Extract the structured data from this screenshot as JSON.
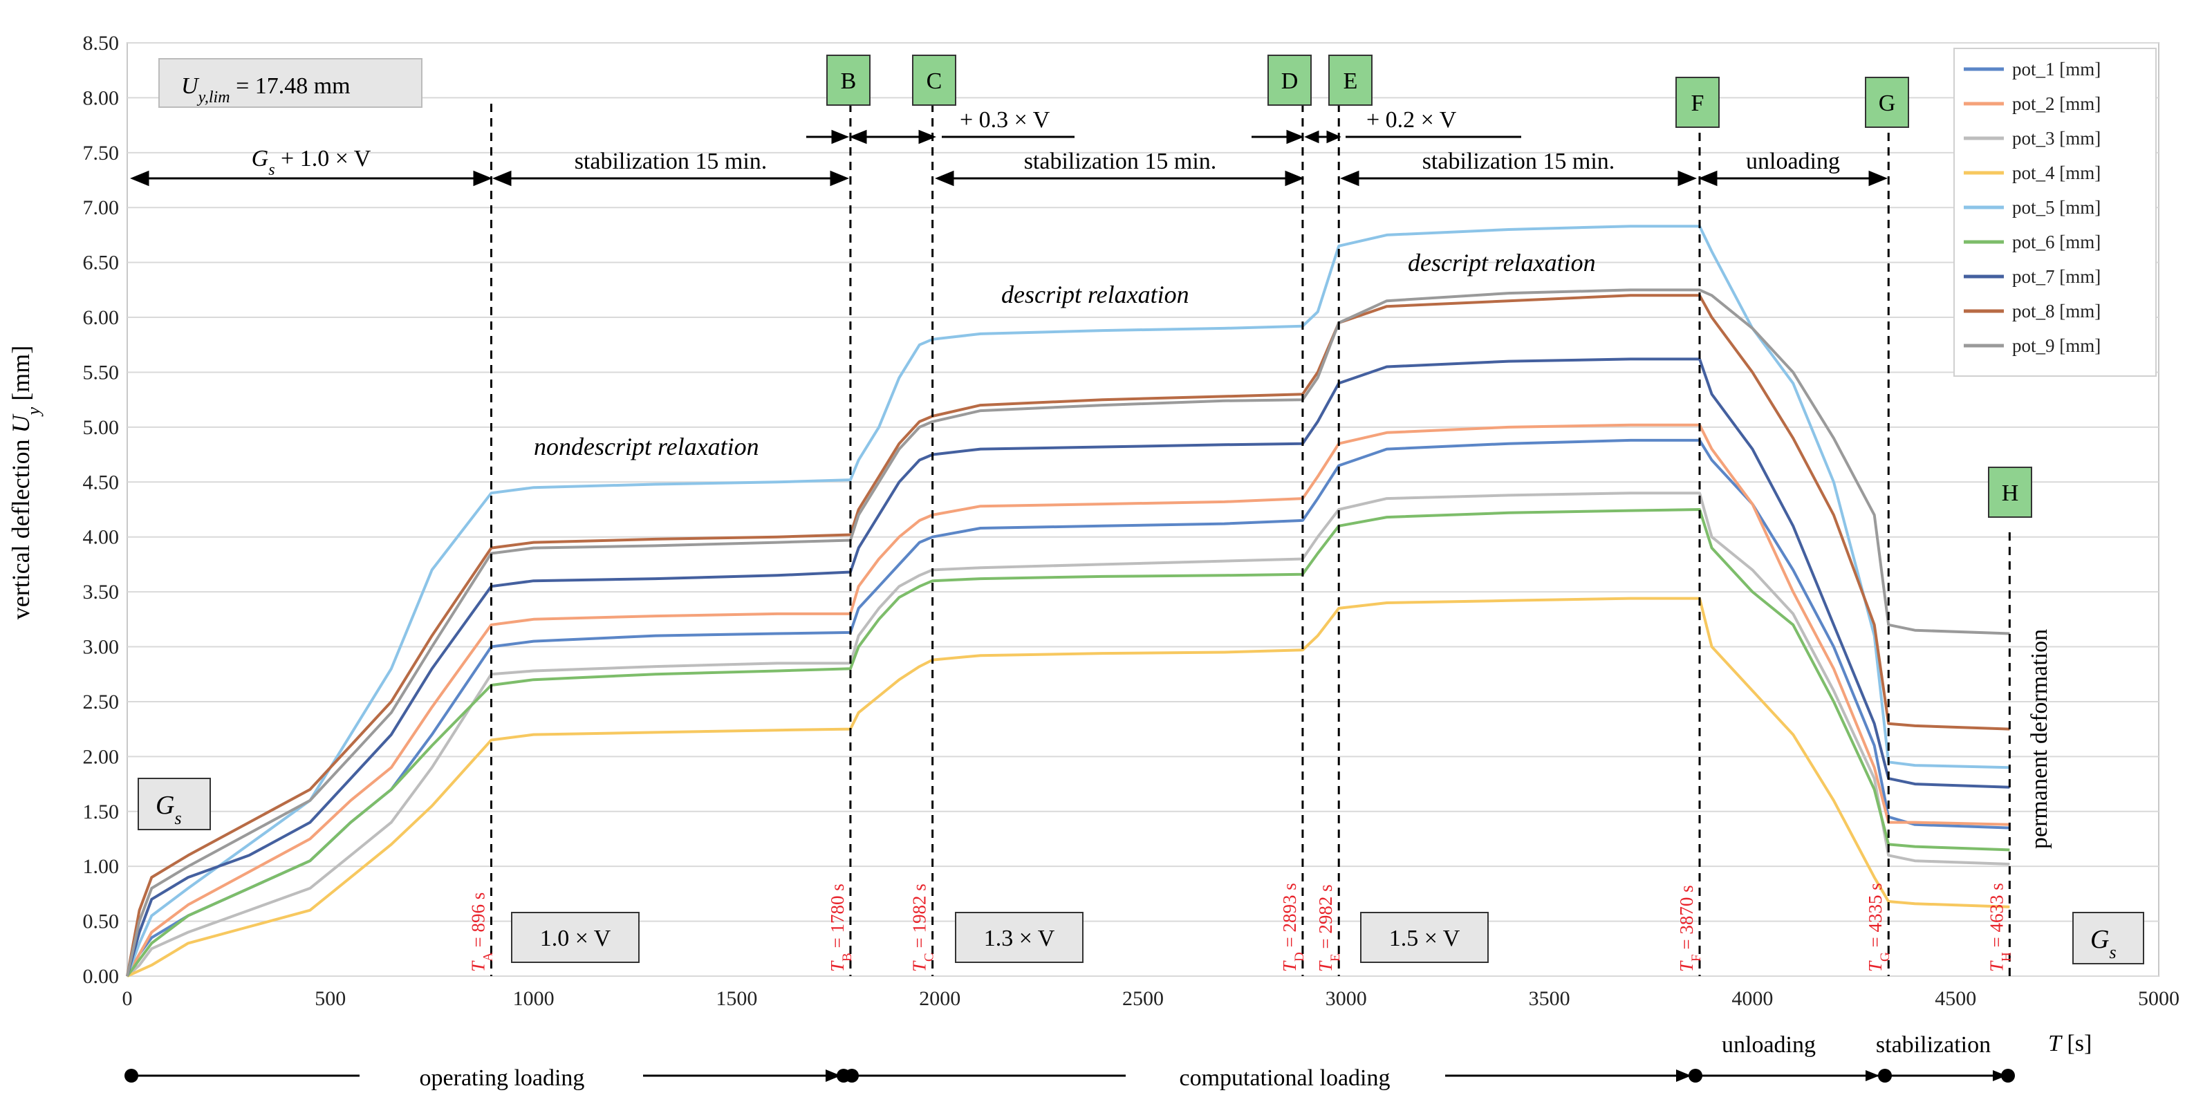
{
  "chart_data": {
    "type": "line",
    "xlabel_prefix": "T",
    "xlabel_unit": "[s]",
    "ylabel_prefix": "vertical deflection",
    "ylabel_symbol": "U",
    "ylabel_sub": "y",
    "ylabel_unit": "[mm]",
    "xlim": [
      0,
      5000
    ],
    "ylim": [
      0,
      8.5
    ],
    "xticks": [
      0,
      500,
      1000,
      1500,
      2000,
      2500,
      3000,
      3500,
      4000,
      4500,
      5000
    ],
    "yticks": [
      "0.00",
      "0.50",
      "1.00",
      "1.50",
      "2.00",
      "2.50",
      "3.00",
      "3.50",
      "4.00",
      "4.50",
      "5.00",
      "5.50",
      "6.00",
      "6.50",
      "7.00",
      "7.50",
      "8.00",
      "8.50"
    ],
    "legend_position": "top-right",
    "x": [
      0,
      30,
      60,
      150,
      300,
      450,
      550,
      650,
      750,
      896,
      1000,
      1300,
      1600,
      1780,
      1800,
      1850,
      1900,
      1950,
      1982,
      2100,
      2400,
      2700,
      2893,
      2930,
      2982,
      3100,
      3400,
      3700,
      3870,
      3900,
      4000,
      4100,
      4200,
      4300,
      4335,
      4400,
      4633
    ],
    "series": [
      {
        "name": "pot_1 [mm]",
        "color": "#5b86c7",
        "values": [
          0,
          0.2,
          0.35,
          0.55,
          0.8,
          1.05,
          1.4,
          1.7,
          2.2,
          3.0,
          3.05,
          3.1,
          3.12,
          3.13,
          3.35,
          3.55,
          3.75,
          3.95,
          4.0,
          4.08,
          4.1,
          4.12,
          4.15,
          4.35,
          4.65,
          4.8,
          4.85,
          4.88,
          4.88,
          4.7,
          4.3,
          3.7,
          3.0,
          2.1,
          1.45,
          1.38,
          1.35
        ]
      },
      {
        "name": "pot_2 [mm]",
        "color": "#f5a27a",
        "values": [
          0,
          0.2,
          0.4,
          0.65,
          0.95,
          1.25,
          1.6,
          1.9,
          2.45,
          3.2,
          3.25,
          3.28,
          3.3,
          3.3,
          3.55,
          3.8,
          4.0,
          4.15,
          4.2,
          4.28,
          4.3,
          4.32,
          4.35,
          4.55,
          4.85,
          4.95,
          5.0,
          5.02,
          5.02,
          4.8,
          4.3,
          3.5,
          2.8,
          1.9,
          1.4,
          1.4,
          1.38
        ]
      },
      {
        "name": "pot_3 [mm]",
        "color": "#bdbdbd",
        "values": [
          0,
          0.1,
          0.25,
          0.4,
          0.6,
          0.8,
          1.1,
          1.4,
          1.9,
          2.75,
          2.78,
          2.82,
          2.85,
          2.85,
          3.1,
          3.35,
          3.55,
          3.65,
          3.7,
          3.72,
          3.75,
          3.78,
          3.8,
          4.0,
          4.25,
          4.35,
          4.38,
          4.4,
          4.4,
          4.0,
          3.7,
          3.3,
          2.6,
          1.8,
          1.1,
          1.05,
          1.02
        ]
      },
      {
        "name": "pot_4 [mm]",
        "color": "#f7c85f",
        "values": [
          0,
          0.05,
          0.1,
          0.3,
          0.45,
          0.6,
          0.9,
          1.2,
          1.55,
          2.15,
          2.2,
          2.22,
          2.24,
          2.25,
          2.4,
          2.55,
          2.7,
          2.82,
          2.88,
          2.92,
          2.94,
          2.95,
          2.97,
          3.1,
          3.35,
          3.4,
          3.42,
          3.44,
          3.44,
          3.0,
          2.6,
          2.2,
          1.6,
          0.9,
          0.68,
          0.66,
          0.63
        ]
      },
      {
        "name": "pot_5 [mm]",
        "color": "#8cc4e8",
        "values": [
          0,
          0.3,
          0.55,
          0.8,
          1.2,
          1.6,
          2.2,
          2.8,
          3.7,
          4.4,
          4.45,
          4.48,
          4.5,
          4.52,
          4.7,
          5.0,
          5.45,
          5.75,
          5.8,
          5.85,
          5.88,
          5.9,
          5.92,
          6.05,
          6.65,
          6.75,
          6.8,
          6.83,
          6.83,
          6.6,
          5.9,
          5.4,
          4.5,
          3.1,
          1.95,
          1.92,
          1.9
        ]
      },
      {
        "name": "pot_6 [mm]",
        "color": "#7dbd6a",
        "values": [
          0,
          0.15,
          0.3,
          0.55,
          0.8,
          1.05,
          1.4,
          1.7,
          2.1,
          2.65,
          2.7,
          2.75,
          2.78,
          2.8,
          3.0,
          3.25,
          3.45,
          3.55,
          3.6,
          3.62,
          3.64,
          3.65,
          3.66,
          3.85,
          4.1,
          4.18,
          4.22,
          4.24,
          4.25,
          3.9,
          3.5,
          3.2,
          2.5,
          1.7,
          1.2,
          1.18,
          1.15
        ]
      },
      {
        "name": "pot_7 [mm]",
        "color": "#44609f",
        "values": [
          0,
          0.4,
          0.7,
          0.9,
          1.1,
          1.4,
          1.8,
          2.2,
          2.8,
          3.55,
          3.6,
          3.62,
          3.65,
          3.68,
          3.9,
          4.2,
          4.5,
          4.7,
          4.75,
          4.8,
          4.82,
          4.84,
          4.85,
          5.05,
          5.4,
          5.55,
          5.6,
          5.62,
          5.62,
          5.3,
          4.8,
          4.1,
          3.2,
          2.3,
          1.8,
          1.75,
          1.72
        ]
      },
      {
        "name": "pot_8 [mm]",
        "color": "#b86b45",
        "values": [
          0,
          0.6,
          0.9,
          1.1,
          1.4,
          1.7,
          2.1,
          2.5,
          3.1,
          3.9,
          3.95,
          3.98,
          4.0,
          4.02,
          4.25,
          4.55,
          4.85,
          5.05,
          5.1,
          5.2,
          5.25,
          5.28,
          5.3,
          5.5,
          5.95,
          6.1,
          6.15,
          6.2,
          6.2,
          6.0,
          5.5,
          4.9,
          4.2,
          3.2,
          2.3,
          2.28,
          2.25
        ]
      },
      {
        "name": "pot_9 [mm]",
        "color": "#9a9a9a",
        "values": [
          0,
          0.5,
          0.8,
          1.0,
          1.3,
          1.6,
          2.0,
          2.4,
          3.0,
          3.85,
          3.9,
          3.92,
          3.95,
          3.97,
          4.2,
          4.5,
          4.8,
          5.0,
          5.05,
          5.15,
          5.2,
          5.24,
          5.25,
          5.45,
          5.95,
          6.15,
          6.22,
          6.25,
          6.25,
          6.2,
          5.9,
          5.5,
          4.9,
          4.2,
          3.2,
          3.15,
          3.12
        ]
      }
    ],
    "vlines": [
      {
        "x": 896,
        "label_sym": "T",
        "label_sub": "A",
        "label_val": "= 896 s"
      },
      {
        "x": 1780,
        "label_sym": "T",
        "label_sub": "B",
        "label_val": "= 1780 s"
      },
      {
        "x": 1982,
        "label_sym": "T",
        "label_sub": "C",
        "label_val": "= 1982 s"
      },
      {
        "x": 2893,
        "label_sym": "T",
        "label_sub": "D",
        "label_val": "= 2893 s"
      },
      {
        "x": 2982,
        "label_sym": "T",
        "label_sub": "E",
        "label_val": "= 2982 s"
      },
      {
        "x": 3870,
        "label_sym": "T",
        "label_sub": "F",
        "label_val": "= 3870 s"
      },
      {
        "x": 4335,
        "label_sym": "T",
        "label_sub": "G",
        "label_val": "= 4335 s"
      },
      {
        "x": 4633,
        "label_sym": "T",
        "label_sub": "H",
        "label_val": "= 4633 s"
      }
    ],
    "markers": [
      "B",
      "C",
      "D",
      "E",
      "F",
      "G",
      "H"
    ],
    "boxes": {
      "ulim_sym": "U",
      "ulim_sub": "y,lim",
      "ulim_val": "= 17.48 mm",
      "gs_sym": "G",
      "gs_sub": "s",
      "load_1": "1.0 × V",
      "load_2": "1.3 × V",
      "load_3": "1.5 × V"
    },
    "annotations": {
      "gs_plus": "G",
      "gs_plus_sub": "s",
      "gs_plus_rest": " + 1.0 × V",
      "stab_1": "stabilization 15 min.",
      "stab_2": "stabilization 15 min.",
      "stab_3": "stabilization 15 min.",
      "plus_03": "+ 0.3 × V",
      "plus_02": "+ 0.2 × V",
      "unloading_top": "unloading",
      "nondescript": "nondescript relaxation",
      "descript_1": "descript relaxation",
      "descript_2": "descript relaxation",
      "permanent": "permanent deformation"
    },
    "phases": {
      "operating": "operating loading",
      "computational": "computational loading",
      "unloading": "unloading",
      "stabilization": "stabilization"
    }
  }
}
